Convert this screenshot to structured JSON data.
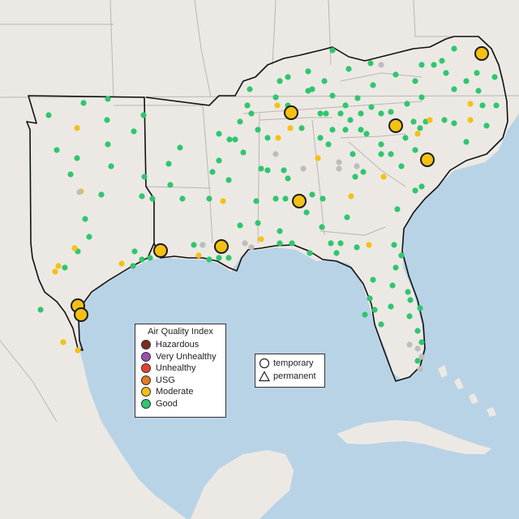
{
  "map": {
    "colors": {
      "water": "#b9d3e6",
      "land": "#ece9e4",
      "state_border": "#b9b6b1",
      "region_outline": "#111111"
    },
    "site_classes": [
      {
        "key": "good",
        "color": "#2fc66f"
      },
      {
        "key": "moderate",
        "color": "#f5c014"
      },
      {
        "key": "no_data",
        "color": "#bdbdbd"
      }
    ]
  },
  "legend": {
    "title": "Air Quality Index",
    "items": [
      {
        "label": "Hazardous",
        "color": "#7e2b20"
      },
      {
        "label": "Very Unhealthy",
        "color": "#9b4fb1"
      },
      {
        "label": "Unhealthy",
        "color": "#e3432f"
      },
      {
        "label": "USG",
        "color": "#e27c20"
      },
      {
        "label": "Moderate",
        "color": "#f5c014"
      },
      {
        "label": "Good",
        "color": "#2fc66f"
      }
    ]
  },
  "monitor_types": {
    "items": [
      {
        "label": "temporary",
        "shape": "circle-icon"
      },
      {
        "label": "permanent",
        "shape": "triangle-icon"
      }
    ]
  }
}
